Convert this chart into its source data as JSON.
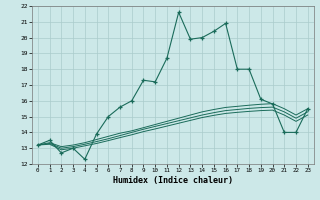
{
  "xlabel": "Humidex (Indice chaleur)",
  "bg_color": "#cce8e8",
  "grid_color": "#aacccc",
  "line_color": "#1a6b5a",
  "xlim": [
    -0.5,
    23.5
  ],
  "ylim": [
    12,
    22
  ],
  "xticks": [
    0,
    1,
    2,
    3,
    4,
    5,
    6,
    7,
    8,
    9,
    10,
    11,
    12,
    13,
    14,
    15,
    16,
    17,
    18,
    19,
    20,
    21,
    22,
    23
  ],
  "yticks": [
    12,
    13,
    14,
    15,
    16,
    17,
    18,
    19,
    20,
    21,
    22
  ],
  "main_line_x": [
    0,
    1,
    2,
    3,
    4,
    5,
    6,
    7,
    8,
    9,
    10,
    11,
    12,
    13,
    14,
    15,
    16,
    17,
    18,
    19,
    20,
    21,
    22,
    23
  ],
  "main_line_y": [
    13.2,
    13.5,
    12.7,
    13.0,
    12.3,
    13.9,
    15.0,
    15.6,
    16.0,
    17.3,
    17.2,
    18.7,
    21.6,
    19.9,
    20.0,
    20.4,
    20.9,
    18.0,
    18.0,
    16.1,
    15.8,
    14.0,
    14.0,
    15.5
  ],
  "line2_x": [
    0,
    1,
    2,
    3,
    4,
    5,
    6,
    7,
    8,
    9,
    10,
    11,
    12,
    13,
    14,
    15,
    16,
    17,
    18,
    19,
    20,
    21,
    22,
    23
  ],
  "line2_y": [
    13.2,
    13.35,
    13.1,
    13.2,
    13.35,
    13.55,
    13.75,
    13.95,
    14.1,
    14.3,
    14.5,
    14.7,
    14.9,
    15.1,
    15.3,
    15.45,
    15.58,
    15.65,
    15.72,
    15.78,
    15.82,
    15.5,
    15.1,
    15.5
  ],
  "line3_x": [
    0,
    1,
    2,
    3,
    4,
    5,
    6,
    7,
    8,
    9,
    10,
    11,
    12,
    13,
    14,
    15,
    16,
    17,
    18,
    19,
    20,
    21,
    22,
    23
  ],
  "line3_y": [
    13.2,
    13.3,
    13.0,
    13.1,
    13.25,
    13.42,
    13.6,
    13.8,
    14.0,
    14.2,
    14.38,
    14.56,
    14.74,
    14.92,
    15.1,
    15.25,
    15.38,
    15.45,
    15.52,
    15.57,
    15.6,
    15.3,
    14.9,
    15.3
  ],
  "line4_x": [
    0,
    1,
    2,
    3,
    4,
    5,
    6,
    7,
    8,
    9,
    10,
    11,
    12,
    13,
    14,
    15,
    16,
    17,
    18,
    19,
    20,
    21,
    22,
    23
  ],
  "line4_y": [
    13.2,
    13.25,
    12.9,
    13.0,
    13.15,
    13.3,
    13.48,
    13.67,
    13.85,
    14.05,
    14.22,
    14.4,
    14.58,
    14.76,
    14.94,
    15.08,
    15.2,
    15.27,
    15.33,
    15.38,
    15.41,
    15.1,
    14.7,
    15.1
  ]
}
